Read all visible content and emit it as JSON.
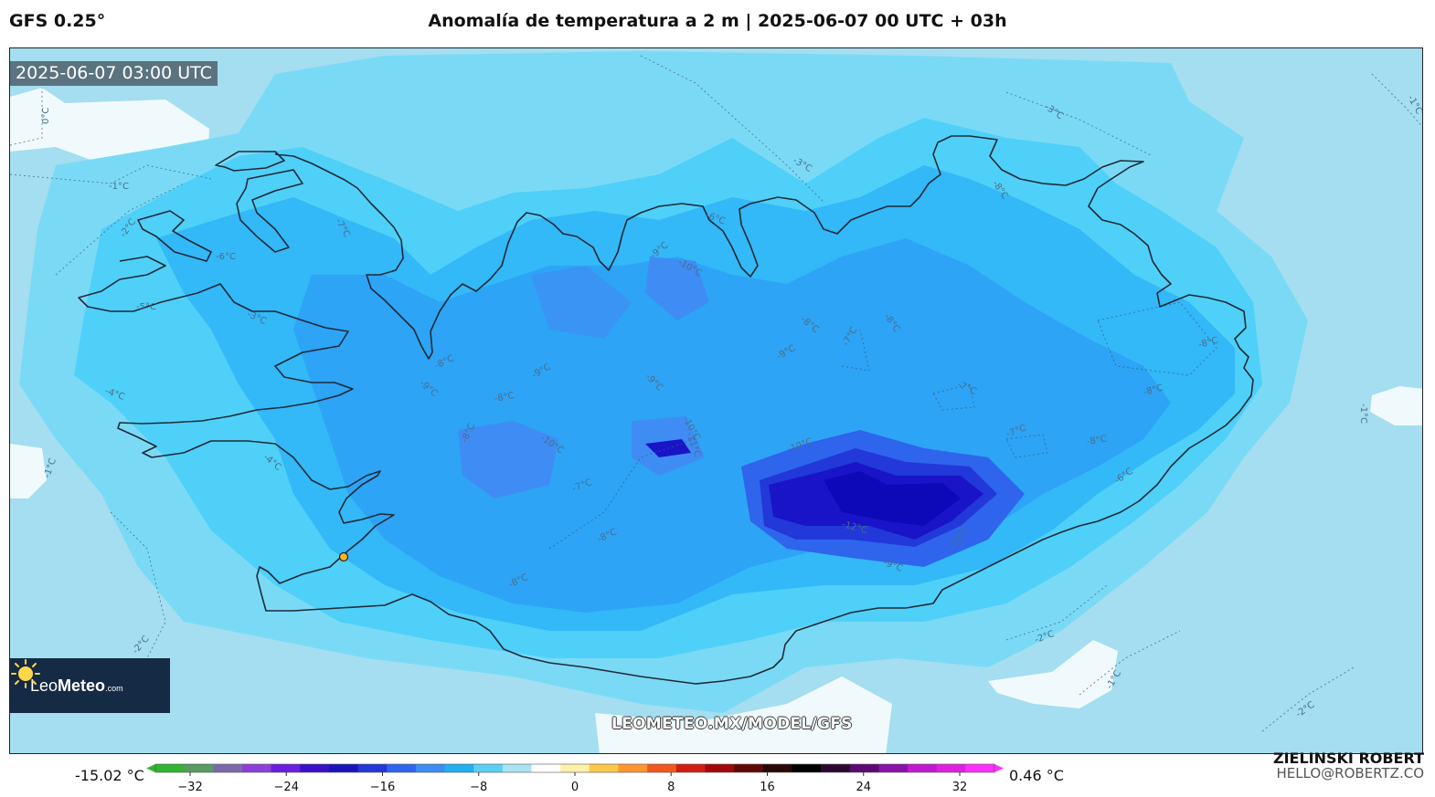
{
  "header": {
    "model": "GFS 0.25°",
    "title": "Anomalía de temperatura a 2 m | 2025-06-07 00 UTC + 03h"
  },
  "map": {
    "valid_time": "2025-06-07 03:00 UTC",
    "watermark": "LEOMETEO.MX/MODEL/GFS",
    "region": "Iceland",
    "contour_labels": [
      {
        "text": "0°C"
      },
      {
        "text": "-1°C"
      },
      {
        "text": "-1°C"
      },
      {
        "text": "-1°C"
      },
      {
        "text": "-1°C"
      },
      {
        "text": "-1°C"
      },
      {
        "text": "-2°C"
      },
      {
        "text": "-2°C"
      },
      {
        "text": "-2°C"
      },
      {
        "text": "-2°C"
      },
      {
        "text": "-3°C"
      },
      {
        "text": "-3°C"
      },
      {
        "text": "-3°C"
      },
      {
        "text": "-4°C"
      },
      {
        "text": "-4°C"
      },
      {
        "text": "-5°C"
      },
      {
        "text": "-6°C"
      },
      {
        "text": "-6°C"
      },
      {
        "text": "-6°C"
      },
      {
        "text": "-7°C"
      },
      {
        "text": "-7°C"
      },
      {
        "text": "-7°C"
      },
      {
        "text": "-7°C"
      },
      {
        "text": "-7°C"
      },
      {
        "text": "-8°C"
      },
      {
        "text": "-8°C"
      },
      {
        "text": "-8°C"
      },
      {
        "text": "-8°C"
      },
      {
        "text": "-8°C"
      },
      {
        "text": "-8°C"
      },
      {
        "text": "-8°C"
      },
      {
        "text": "-8°C"
      },
      {
        "text": "-8°C"
      },
      {
        "text": "-8°C"
      },
      {
        "text": "-8°C"
      },
      {
        "text": "-9°C"
      },
      {
        "text": "-9°C"
      },
      {
        "text": "-9°C"
      },
      {
        "text": "-9°C"
      },
      {
        "text": "-9°C"
      },
      {
        "text": "-9°C"
      },
      {
        "text": "-10°C"
      },
      {
        "text": "-10°C"
      },
      {
        "text": "-10°C"
      },
      {
        "text": "-10°C"
      },
      {
        "text": "-11°C"
      },
      {
        "text": "-11°C"
      },
      {
        "text": "-12°C"
      }
    ]
  },
  "logo": {
    "brand_light": "Leo",
    "brand_bold": "Meteo",
    "domain": ".com"
  },
  "colorbar": {
    "min_label": "-15.02 °C",
    "max_label": "0.46 °C",
    "ticks": [
      "−32",
      "−24",
      "−16",
      "−8",
      "0",
      "8",
      "16",
      "24",
      "32"
    ],
    "colors": [
      "#32b432",
      "#5a9a64",
      "#7a6aa8",
      "#8c40d8",
      "#6a1ee0",
      "#3a10c8",
      "#1a14b8",
      "#2238d8",
      "#2f64ec",
      "#3f8cf4",
      "#22b0f0",
      "#5cd0f4",
      "#a8e4f4",
      "#ffffff",
      "#fff0a8",
      "#ffc84a",
      "#ff9630",
      "#f0581e",
      "#d01e12",
      "#a0080a",
      "#600808",
      "#280808",
      "#000000",
      "#2a0830",
      "#5a0a70",
      "#8a12a8",
      "#c01ad0",
      "#e020e0",
      "#ff30ff"
    ]
  },
  "author": {
    "name": "ZIELINSKI ROBERT",
    "email": "HELLO@ROBERTZ.CO"
  }
}
